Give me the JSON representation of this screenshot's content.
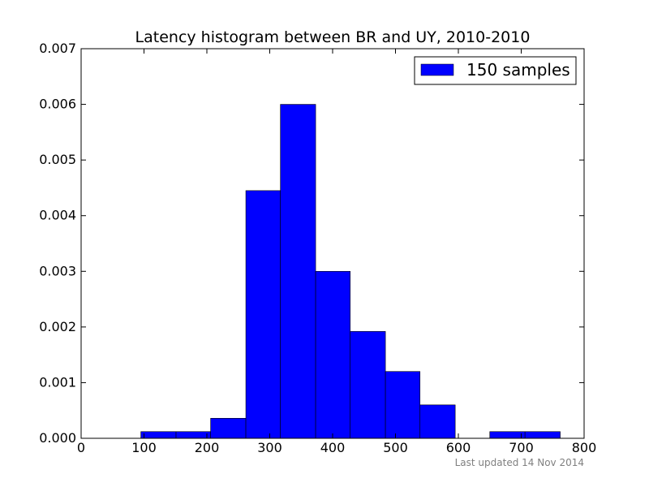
{
  "chart_data": {
    "type": "bar",
    "title": "Latency histogram between BR and UY, 2010-2010",
    "xlabel": "",
    "ylabel": "",
    "xlim": [
      0,
      800
    ],
    "ylim": [
      0,
      0.007
    ],
    "x_ticks": [
      "0",
      "100",
      "200",
      "300",
      "400",
      "500",
      "600",
      "700",
      "800"
    ],
    "y_ticks": [
      "0.000",
      "0.001",
      "0.002",
      "0.003",
      "0.004",
      "0.005",
      "0.006",
      "0.007"
    ],
    "bin_edges": [
      95,
      151,
      206,
      262,
      317,
      373,
      428,
      484,
      539,
      595,
      650,
      706,
      762
    ],
    "values": [
      0.00012,
      0.00012,
      0.00036,
      0.00445,
      0.006,
      0.003,
      0.00192,
      0.0012,
      0.0006,
      0.0,
      0.00012,
      0.00012
    ],
    "bar_color": "#0000ff",
    "grid": false,
    "legend_position": "top-right",
    "series": [
      {
        "name": "150 samples",
        "color": "#0000ff"
      }
    ]
  },
  "footnote": "Last updated 14 Nov 2014"
}
